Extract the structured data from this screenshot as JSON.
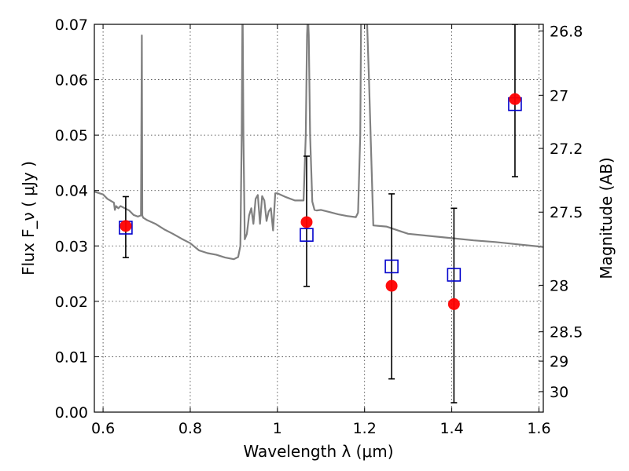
{
  "chart_data": {
    "type": "scatter",
    "xlabel": "Wavelength  λ (μm)",
    "ylabel": "Flux  F_ν  ( μJy )",
    "y2label": "Magnitude (AB)",
    "xlim": [
      0.58,
      1.61
    ],
    "ylim": [
      0.0,
      0.07
    ],
    "grid": true,
    "x_ticks": [
      {
        "value": 0.6,
        "label": "0.6"
      },
      {
        "value": 0.8,
        "label": "0.8"
      },
      {
        "value": 1.0,
        "label": "1"
      },
      {
        "value": 1.2,
        "label": "1.2"
      },
      {
        "value": 1.4,
        "label": "1.4"
      },
      {
        "value": 1.6,
        "label": "1.6"
      }
    ],
    "y_ticks": [
      {
        "value": 0.0,
        "label": "0.00"
      },
      {
        "value": 0.01,
        "label": "0.01"
      },
      {
        "value": 0.02,
        "label": "0.02"
      },
      {
        "value": 0.03,
        "label": "0.03"
      },
      {
        "value": 0.04,
        "label": "0.04"
      },
      {
        "value": 0.05,
        "label": "0.05"
      },
      {
        "value": 0.06,
        "label": "0.06"
      },
      {
        "value": 0.07,
        "label": "0.07"
      }
    ],
    "y2_ticks": [
      {
        "flux": 0.0688,
        "label": "26.8"
      },
      {
        "flux": 0.0572,
        "label": "27"
      },
      {
        "flux": 0.0476,
        "label": "27.2"
      },
      {
        "flux": 0.0361,
        "label": "27.5"
      },
      {
        "flux": 0.0229,
        "label": "28"
      },
      {
        "flux": 0.0145,
        "label": "28.5"
      },
      {
        "flux": 0.0092,
        "label": "29"
      },
      {
        "flux": 0.0037,
        "label": "30"
      }
    ],
    "series": [
      {
        "kind": "line",
        "color": "#808080",
        "x": [
          0.58,
          0.6,
          0.61,
          0.625,
          0.627,
          0.63,
          0.635,
          0.64,
          0.65,
          0.66,
          0.67,
          0.68,
          0.686,
          0.687,
          0.689,
          0.69,
          0.692,
          0.7,
          0.72,
          0.74,
          0.76,
          0.78,
          0.8,
          0.82,
          0.84,
          0.86,
          0.88,
          0.9,
          0.91,
          0.915,
          0.918,
          0.92,
          0.922,
          0.925,
          0.93,
          0.935,
          0.94,
          0.945,
          0.95,
          0.955,
          0.96,
          0.965,
          0.97,
          0.975,
          0.98,
          0.985,
          0.99,
          0.995,
          1.0,
          1.02,
          1.04,
          1.06,
          1.065,
          1.068,
          1.07,
          1.072,
          1.075,
          1.08,
          1.085,
          1.09,
          1.1,
          1.12,
          1.14,
          1.16,
          1.18,
          1.185,
          1.19,
          1.192,
          1.195,
          1.2,
          1.205,
          1.21,
          1.22,
          1.25,
          1.28,
          1.3,
          1.35,
          1.4,
          1.45,
          1.5,
          1.55,
          1.6,
          1.61
        ],
        "y": [
          0.0398,
          0.0393,
          0.0385,
          0.0378,
          0.0365,
          0.0372,
          0.0368,
          0.0372,
          0.0368,
          0.0364,
          0.0356,
          0.0353,
          0.0355,
          0.0355,
          0.068,
          0.0355,
          0.0351,
          0.0347,
          0.034,
          0.033,
          0.0322,
          0.0313,
          0.0305,
          0.0292,
          0.0287,
          0.0284,
          0.0279,
          0.0276,
          0.028,
          0.03,
          0.05,
          0.075,
          0.05,
          0.0312,
          0.0322,
          0.0355,
          0.0368,
          0.034,
          0.0385,
          0.0392,
          0.034,
          0.039,
          0.0382,
          0.0345,
          0.0362,
          0.0368,
          0.0328,
          0.0395,
          0.0395,
          0.0388,
          0.0382,
          0.0382,
          0.05,
          0.068,
          0.072,
          0.068,
          0.05,
          0.038,
          0.0365,
          0.0364,
          0.0365,
          0.0361,
          0.0357,
          0.0354,
          0.0352,
          0.036,
          0.05,
          0.072,
          0.075,
          0.075,
          0.072,
          0.06,
          0.0337,
          0.0335,
          0.0327,
          0.0322,
          0.0318,
          0.0314,
          0.031,
          0.0307,
          0.0303,
          0.0299,
          0.0298
        ]
      },
      {
        "kind": "errorbar",
        "color": "#000000",
        "x": [
          0.652,
          1.067,
          1.262,
          1.405,
          1.545
        ],
        "low": [
          0.0279,
          0.0227,
          0.006,
          0.0017,
          0.0425
        ],
        "high": [
          0.0389,
          0.0462,
          0.0394,
          0.0368,
          0.07
        ]
      },
      {
        "kind": "square",
        "color": "#0000cc",
        "x": [
          0.652,
          1.067,
          1.262,
          1.405,
          1.545
        ],
        "y": [
          0.0333,
          0.032,
          0.0263,
          0.0248,
          0.0556
        ]
      },
      {
        "kind": "circle",
        "color": "#ff0000",
        "x": [
          0.652,
          1.067,
          1.262,
          1.405,
          1.545
        ],
        "y": [
          0.0336,
          0.0343,
          0.0228,
          0.0195,
          0.0565
        ]
      }
    ]
  }
}
